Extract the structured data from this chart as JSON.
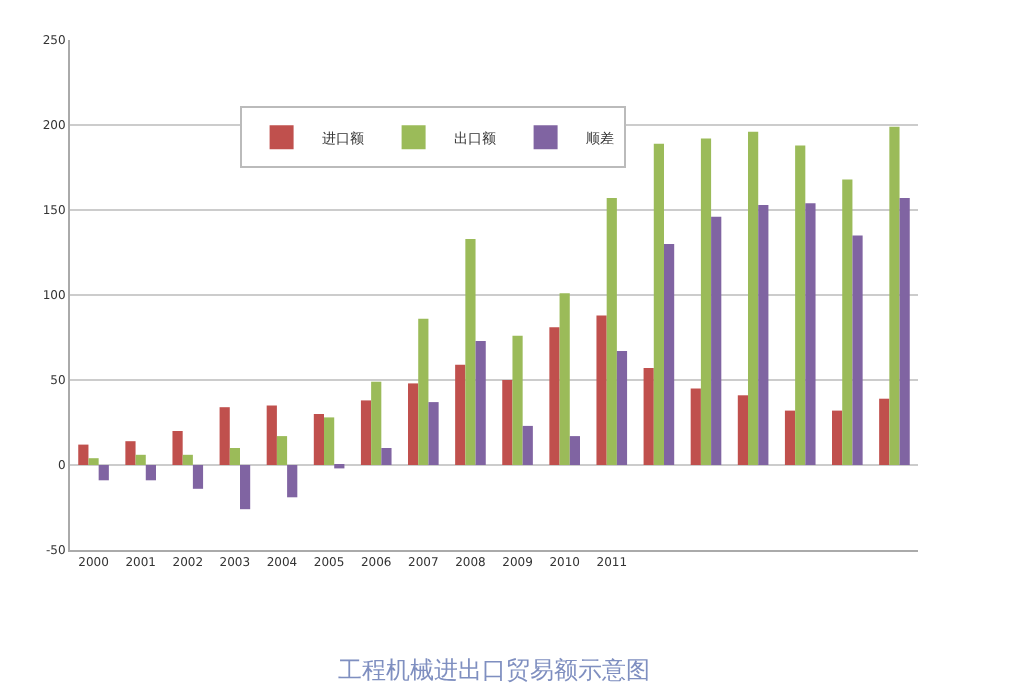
{
  "chart_data": {
    "type": "bar",
    "categories": [
      "2000",
      "2001",
      "2002",
      "2003",
      "2004",
      "2005",
      "2006",
      "2007",
      "2008",
      "2009",
      "2010",
      "2011",
      null,
      null,
      null,
      null,
      null,
      null
    ],
    "series": [
      {
        "name": "进口额",
        "color": "#c0504d",
        "values": [
          12,
          14,
          20,
          34,
          35,
          30,
          38,
          48,
          59,
          50,
          81,
          88,
          57,
          45,
          41,
          32,
          32,
          39
        ]
      },
      {
        "name": "出口额",
        "color": "#9bbb59",
        "values": [
          4,
          6,
          6,
          10,
          17,
          28,
          49,
          86,
          133,
          76,
          101,
          157,
          189,
          192,
          196,
          188,
          168,
          199
        ]
      },
      {
        "name": "顺差",
        "color": "#8064a2",
        "values": [
          -9,
          -9,
          -14,
          -26,
          -19,
          -2,
          10,
          37,
          73,
          23,
          17,
          67,
          130,
          146,
          153,
          154,
          135,
          157
        ]
      }
    ],
    "ylim": [
      -50,
      250
    ],
    "yticks": [
      -50,
      0,
      50,
      100,
      150,
      200,
      250
    ],
    "grid": "y",
    "legend": "top left",
    "annotations": [
      "工程机械进出口贸易额示意图"
    ]
  }
}
